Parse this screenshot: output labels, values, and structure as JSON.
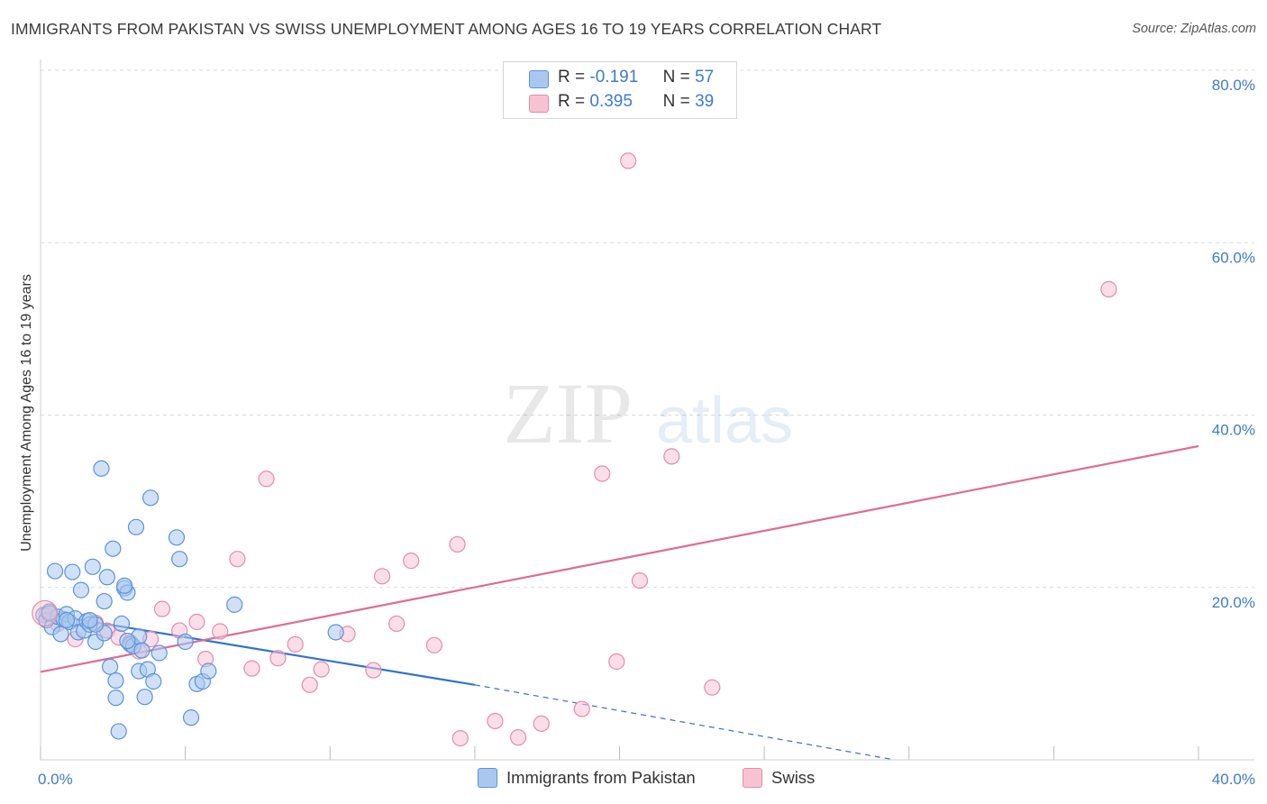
{
  "header": {
    "title": "IMMIGRANTS FROM PAKISTAN VS SWISS UNEMPLOYMENT AMONG AGES 16 TO 19 YEARS CORRELATION CHART",
    "source": "Source: ZipAtlas.com"
  },
  "watermark": {
    "zip": "ZIP",
    "atlas": "atlas"
  },
  "legend": {
    "rows": [
      {
        "r_label": "R =",
        "r_value": "-0.191",
        "n_label": "N =",
        "n_value": "57"
      },
      {
        "r_label": "R =",
        "r_value": "0.395",
        "n_label": "N =",
        "n_value": "39"
      }
    ]
  },
  "bottom_legend": {
    "items": [
      {
        "label": "Immigrants from Pakistan"
      },
      {
        "label": "Swiss"
      }
    ]
  },
  "colors": {
    "pakistan_fill": "#a9c8f0",
    "pakistan_stroke": "#5b93d9",
    "pakistan_line": "#2f72d0",
    "swiss_fill": "#f7c3d3",
    "swiss_stroke": "#e58cab",
    "swiss_line": "#e06a95",
    "tick": "#3d7cc9",
    "grid": "#d9d9d9"
  },
  "chart_data": {
    "type": "scatter",
    "title": "IMMIGRANTS FROM PAKISTAN VS SWISS UNEMPLOYMENT AMONG AGES 16 TO 19 YEARS CORRELATION CHART",
    "xlabel": "",
    "ylabel": "Unemployment Among Ages 16 to 19 years",
    "xlim": [
      0,
      40
    ],
    "ylim": [
      0,
      80
    ],
    "x_tick_labels": [
      {
        "value": 0,
        "label": "0.0%"
      },
      {
        "value": 40,
        "label": "40.0%"
      }
    ],
    "y_tick_labels": [
      {
        "value": 20,
        "label": "20.0%"
      },
      {
        "value": 40,
        "label": "40.0%"
      },
      {
        "value": 60,
        "label": "60.0%"
      },
      {
        "value": 80,
        "label": "80.0%"
      }
    ],
    "grid": true,
    "series": [
      {
        "name": "Immigrants from Pakistan",
        "R": -0.191,
        "N": 57,
        "points": [
          [
            0.1,
            16.8
          ],
          [
            0.2,
            16.2
          ],
          [
            0.3,
            17.2
          ],
          [
            0.4,
            15.4
          ],
          [
            0.5,
            21.9
          ],
          [
            0.6,
            16.6
          ],
          [
            0.7,
            14.6
          ],
          [
            0.8,
            16.3
          ],
          [
            0.9,
            16.9
          ],
          [
            1.0,
            16.0
          ],
          [
            1.1,
            21.8
          ],
          [
            1.2,
            16.4
          ],
          [
            1.3,
            14.8
          ],
          [
            1.4,
            19.7
          ],
          [
            1.5,
            15.0
          ],
          [
            1.6,
            16.1
          ],
          [
            1.7,
            15.7
          ],
          [
            1.8,
            22.4
          ],
          [
            1.9,
            13.7
          ],
          [
            2.1,
            33.8
          ],
          [
            2.2,
            18.4
          ],
          [
            2.2,
            14.7
          ],
          [
            2.3,
            21.2
          ],
          [
            2.4,
            10.8
          ],
          [
            2.5,
            24.5
          ],
          [
            2.6,
            9.2
          ],
          [
            2.6,
            7.2
          ],
          [
            2.7,
            3.3
          ],
          [
            2.8,
            15.8
          ],
          [
            2.9,
            19.9
          ],
          [
            3.0,
            19.4
          ],
          [
            3.1,
            13.4
          ],
          [
            3.2,
            13.2
          ],
          [
            3.3,
            27.0
          ],
          [
            3.4,
            14.3
          ],
          [
            3.4,
            10.3
          ],
          [
            3.5,
            12.7
          ],
          [
            3.6,
            7.3
          ],
          [
            3.7,
            10.5
          ],
          [
            3.8,
            30.4
          ],
          [
            3.9,
            9.1
          ],
          [
            4.1,
            12.4
          ],
          [
            4.7,
            25.8
          ],
          [
            4.8,
            23.3
          ],
          [
            5.0,
            13.7
          ],
          [
            5.2,
            4.9
          ],
          [
            5.4,
            8.8
          ],
          [
            5.6,
            9.1
          ],
          [
            5.8,
            10.3
          ],
          [
            6.7,
            18.0
          ],
          [
            10.2,
            14.8
          ],
          [
            0.3,
            17.0
          ],
          [
            1.9,
            15.7
          ],
          [
            2.9,
            20.2
          ],
          [
            0.9,
            16.2
          ],
          [
            1.7,
            16.2
          ],
          [
            3.0,
            13.8
          ]
        ],
        "trend": {
          "x0": 0,
          "y0": 17.0,
          "x1": 15.0,
          "y1": 8.7,
          "dashed_to_x": 29.5,
          "dashed_to_y": 0
        }
      },
      {
        "name": "Swiss",
        "R": 0.395,
        "N": 39,
        "points": [
          [
            0.2,
            16.9
          ],
          [
            0.6,
            15.8
          ],
          [
            1.2,
            14.0
          ],
          [
            1.9,
            15.9
          ],
          [
            2.3,
            15.0
          ],
          [
            2.7,
            14.2
          ],
          [
            3.1,
            13.6
          ],
          [
            3.4,
            12.6
          ],
          [
            3.8,
            14.0
          ],
          [
            4.2,
            17.5
          ],
          [
            4.8,
            15.0
          ],
          [
            5.4,
            16.0
          ],
          [
            5.7,
            11.7
          ],
          [
            6.2,
            14.9
          ],
          [
            6.8,
            23.3
          ],
          [
            7.3,
            10.6
          ],
          [
            7.8,
            32.6
          ],
          [
            8.2,
            11.8
          ],
          [
            8.8,
            13.4
          ],
          [
            9.3,
            8.7
          ],
          [
            9.7,
            10.5
          ],
          [
            10.6,
            14.6
          ],
          [
            11.5,
            10.4
          ],
          [
            11.8,
            21.3
          ],
          [
            12.3,
            15.8
          ],
          [
            12.8,
            23.1
          ],
          [
            13.6,
            13.3
          ],
          [
            14.4,
            25.0
          ],
          [
            14.5,
            2.5
          ],
          [
            15.7,
            4.5
          ],
          [
            16.5,
            2.6
          ],
          [
            17.3,
            4.2
          ],
          [
            18.7,
            5.9
          ],
          [
            19.4,
            33.2
          ],
          [
            19.9,
            11.4
          ],
          [
            20.3,
            69.5
          ],
          [
            20.7,
            20.8
          ],
          [
            21.8,
            35.2
          ],
          [
            23.2,
            8.4
          ]
        ],
        "trend": {
          "x0": 0,
          "y0": 10.2,
          "x1": 40,
          "y1": 36.4
        }
      },
      {
        "name": "Swiss (outlier)",
        "points": [
          [
            36.9,
            54.6
          ]
        ]
      }
    ]
  }
}
